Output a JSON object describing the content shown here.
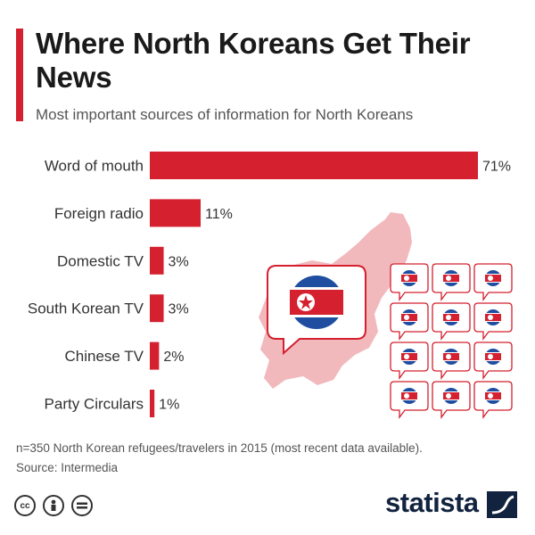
{
  "header": {
    "title": "Where North Koreans Get Their News",
    "subtitle": "Most important sources of information for North Koreans"
  },
  "chart_data": {
    "type": "bar",
    "orientation": "horizontal",
    "title": "Where North Koreans Get Their News",
    "subtitle": "Most important sources of information for North Koreans",
    "categories": [
      "Word of mouth",
      "Foreign radio",
      "Domestic TV",
      "South Korean TV",
      "Chinese TV",
      "Party Circulars"
    ],
    "values": [
      71,
      11,
      3,
      3,
      2,
      1
    ],
    "value_labels": [
      "71%",
      "11%",
      "3%",
      "3%",
      "2%",
      "1%"
    ],
    "unit": "%",
    "xlim": [
      0,
      71
    ],
    "grid": false,
    "legend": "none",
    "bar_color": "#d4202f"
  },
  "footer": {
    "note": "n=350 North Korean refugees/travelers in 2015 (most recent data available).",
    "source": "Source: Intermedia",
    "brand": "statista"
  },
  "colors": {
    "accent": "#d4202f",
    "map_fill": "#f2b9bd",
    "flag_blue": "#1f4ea1",
    "brand_navy": "#12233f"
  },
  "icons": [
    "cc-icon",
    "person-icon",
    "equals-icon",
    "north-korea-map-icon",
    "speech-bubble-icon",
    "dprk-flag-icon"
  ]
}
